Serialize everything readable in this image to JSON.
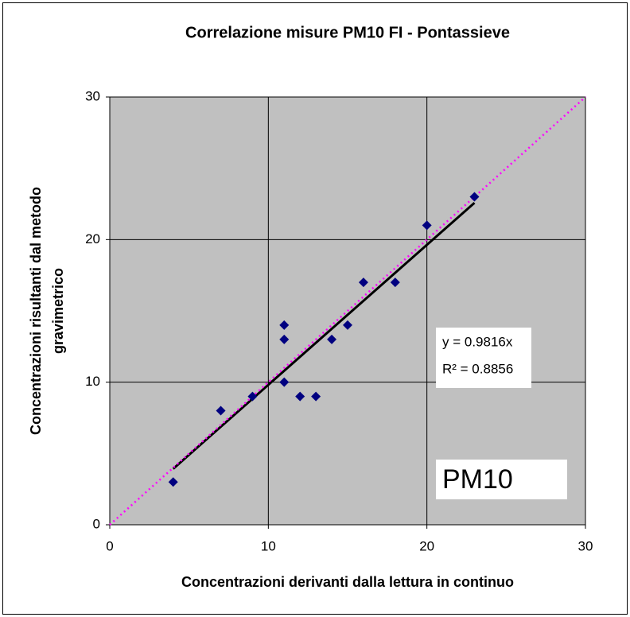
{
  "chart_data": {
    "type": "scatter",
    "title": "Correlazione misure PM10 FI - Pontassieve",
    "xlabel": "Concentrazioni derivanti dalla lettura in continuo",
    "ylabel": [
      "Concentrazioni risultanti dal metodo",
      "gravimetrico"
    ],
    "x": [
      4,
      7,
      9,
      11,
      11,
      11,
      12,
      13,
      14,
      15,
      16,
      18,
      20,
      23
    ],
    "values": [
      3,
      8,
      9,
      14,
      13,
      10,
      9,
      9,
      13,
      14,
      17,
      17,
      21,
      23
    ],
    "color": "#000080",
    "xlim": [
      0,
      30
    ],
    "ylim": [
      0,
      30
    ],
    "xticks": [
      0,
      10,
      20,
      30
    ],
    "yticks": [
      0,
      10,
      20,
      30
    ],
    "grid": true,
    "trendline": {
      "slope": 0.9816,
      "color": "#000000"
    },
    "reference_line": {
      "slope": 1,
      "color": "#ff00ff"
    },
    "annotations": [
      "y = 0.9816x",
      "R² = 0.8856"
    ],
    "label": "PM10"
  }
}
